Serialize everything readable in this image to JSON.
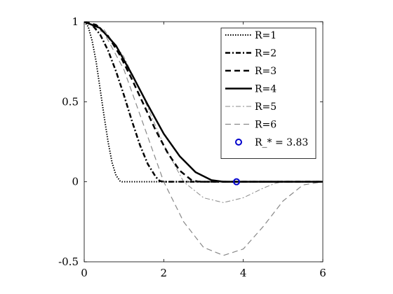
{
  "chart_data": {
    "type": "line",
    "title": "",
    "xlabel": "",
    "ylabel": "",
    "xlim": [
      0,
      6
    ],
    "ylim": [
      -0.5,
      1
    ],
    "xticks": [
      0,
      2,
      4,
      6
    ],
    "yticks": [
      -0.5,
      0,
      0.5,
      1
    ],
    "xtick_labels": [
      "0",
      "2",
      "4",
      "6"
    ],
    "ytick_labels": [
      "-0.5",
      "0",
      "0.5",
      "1"
    ],
    "grid": false,
    "legend_position": "top-right",
    "series": [
      {
        "name": "R=1",
        "style": "dotted",
        "color": "#000000",
        "x": [
          0,
          0.1,
          0.2,
          0.3,
          0.4,
          0.5,
          0.6,
          0.7,
          0.8,
          0.9,
          0.95,
          1.0,
          6.0
        ],
        "y": [
          1,
          0.97,
          0.88,
          0.75,
          0.58,
          0.41,
          0.25,
          0.12,
          0.04,
          0.005,
          0,
          0,
          0
        ]
      },
      {
        "name": "R=2",
        "style": "dashdot",
        "color": "#000000",
        "x": [
          0,
          0.2,
          0.4,
          0.6,
          0.8,
          1.0,
          1.2,
          1.4,
          1.6,
          1.8,
          1.9,
          2.0,
          6.0
        ],
        "y": [
          1,
          0.98,
          0.92,
          0.82,
          0.69,
          0.54,
          0.38,
          0.23,
          0.11,
          0.03,
          0.005,
          0,
          0
        ]
      },
      {
        "name": "R=3",
        "style": "dashed",
        "color": "#000000",
        "x": [
          0,
          0.3,
          0.6,
          0.9,
          1.2,
          1.5,
          1.8,
          2.1,
          2.4,
          2.7,
          2.85,
          3.0,
          6.0
        ],
        "y": [
          1,
          0.98,
          0.91,
          0.79,
          0.64,
          0.48,
          0.32,
          0.18,
          0.07,
          0.01,
          0.002,
          0,
          0
        ]
      },
      {
        "name": "R=4",
        "style": "solid",
        "color": "#000000",
        "x": [
          0,
          0.4,
          0.8,
          1.2,
          1.6,
          2.0,
          2.4,
          2.8,
          3.2,
          3.5,
          3.8,
          4.0,
          6.0
        ],
        "y": [
          1,
          0.96,
          0.85,
          0.67,
          0.48,
          0.3,
          0.16,
          0.06,
          0.01,
          0,
          0,
          0,
          0
        ]
      },
      {
        "name": "R=5",
        "style": "dashdot-thin",
        "color": "#888888",
        "x": [
          0,
          0.5,
          1.0,
          1.5,
          2.0,
          2.5,
          3.0,
          3.5,
          4.0,
          4.5,
          4.8,
          5.0,
          6.0
        ],
        "y": [
          1,
          0.95,
          0.78,
          0.52,
          0.23,
          0.0,
          -0.1,
          -0.13,
          -0.1,
          -0.04,
          -0.01,
          0,
          0
        ]
      },
      {
        "name": "R=6",
        "style": "dashed-thin",
        "color": "#888888",
        "x": [
          0,
          0.5,
          1.0,
          1.5,
          2.0,
          2.5,
          3.0,
          3.5,
          4.0,
          4.5,
          5.0,
          5.5,
          6.0
        ],
        "y": [
          1,
          0.93,
          0.7,
          0.35,
          0.0,
          -0.25,
          -0.41,
          -0.46,
          -0.42,
          -0.28,
          -0.12,
          -0.02,
          0
        ]
      }
    ],
    "marker": {
      "name": "R_* = 3.83",
      "x": 3.83,
      "y": 0,
      "color": "#0000cc"
    }
  }
}
